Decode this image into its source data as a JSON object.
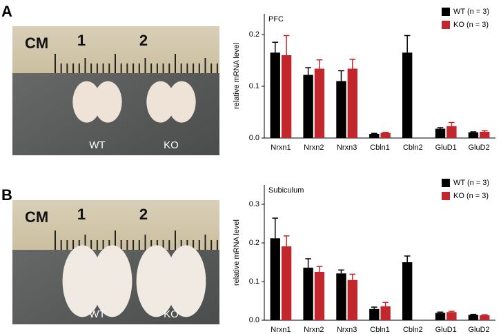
{
  "panels": [
    {
      "label": "A",
      "photo": {
        "scale_unit": "CM",
        "scale_marks": [
          "1",
          "2"
        ],
        "samples": [
          "WT",
          "KO"
        ]
      }
    },
    {
      "label": "B",
      "photo": {
        "scale_unit": "CM",
        "scale_marks": [
          "1",
          "2"
        ],
        "samples": [
          "WT",
          "KO"
        ]
      }
    }
  ],
  "chart_data": [
    {
      "type": "bar",
      "title": "PFC",
      "y_label": "relative mRNA level",
      "categories": [
        "Nrxn1",
        "Nrxn2",
        "Nrxn3",
        "Cbln1",
        "Cbln2",
        "GluD1",
        "GluD2"
      ],
      "series": [
        {
          "name": "WT (n = 3)",
          "color": "#000000",
          "values": [
            0.165,
            0.122,
            0.11,
            0.008,
            0.165,
            0.018,
            0.011
          ],
          "errors": [
            0.02,
            0.014,
            0.02,
            0.001,
            0.033,
            0.002,
            0.001
          ]
        },
        {
          "name": "KO (n = 3)",
          "color": "#c1272d",
          "values": [
            0.16,
            0.134,
            0.134,
            0.01,
            null,
            0.023,
            0.012
          ],
          "errors": [
            0.038,
            0.017,
            0.018,
            0.001,
            null,
            0.007,
            0.002
          ]
        }
      ],
      "ylim": [
        0,
        0.24
      ],
      "yticks": [
        {
          "value": 0,
          "label": "0.0"
        },
        0.1,
        0.2
      ],
      "legend": "top-right"
    },
    {
      "type": "bar",
      "title": "Subiculum",
      "y_label": "relative mRNA level",
      "categories": [
        "Nrxn1",
        "Nrxn2",
        "Nrxn3",
        "Cbln1",
        "Cbln2",
        "GluD1",
        "GluD2"
      ],
      "series": [
        {
          "name": "WT (n = 3)",
          "color": "#000000",
          "values": [
            0.212,
            0.136,
            0.121,
            0.029,
            0.15,
            0.019,
            0.014
          ],
          "errors": [
            0.052,
            0.023,
            0.009,
            0.005,
            0.016,
            0.002,
            0.001
          ]
        },
        {
          "name": "KO (n = 3)",
          "color": "#c1272d",
          "values": [
            0.191,
            0.125,
            0.104,
            0.036,
            null,
            0.021,
            0.013
          ],
          "errors": [
            0.027,
            0.014,
            0.015,
            0.01,
            null,
            0.002,
            0.001
          ]
        }
      ],
      "ylim": [
        0,
        0.35
      ],
      "yticks": [
        {
          "value": 0,
          "label": "0.0"
        },
        0.1,
        0.2,
        0.3
      ],
      "legend": "top-right"
    }
  ]
}
